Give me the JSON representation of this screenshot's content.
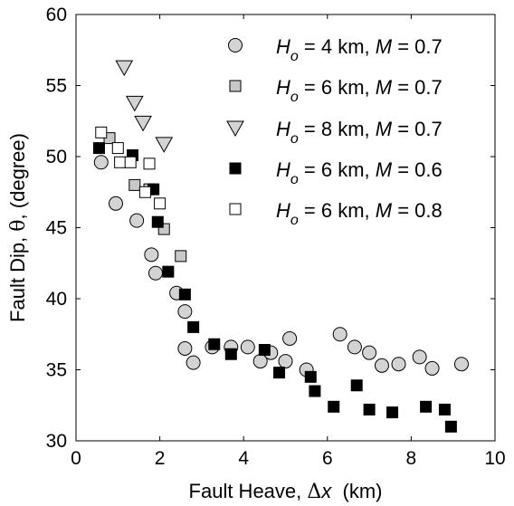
{
  "chart_data": {
    "type": "scatter",
    "xlabel": {
      "prefix": "Fault Heave, ",
      "symbol": "Δ",
      "var": "x",
      "unit": "  (km)"
    },
    "ylabel": {
      "prefix": "Fault Dip, ",
      "symbol": "θ",
      "suffix": ", (degree)"
    },
    "xlim": [
      0,
      10
    ],
    "ylim": [
      30,
      60
    ],
    "xticks": [
      0,
      2,
      4,
      6,
      8,
      10
    ],
    "yticks": [
      30,
      35,
      40,
      45,
      50,
      55,
      60
    ],
    "grid": false,
    "legend_position": "top-right",
    "series": [
      {
        "legend": {
          "h_label": "H",
          "h_sub": "o",
          "h_value": " = 4 km, ",
          "m_label": "M",
          "m_value": " = 0.7"
        },
        "marker": "circle",
        "fill": "#d3d3d3",
        "points": [
          [
            0.6,
            49.6
          ],
          [
            0.95,
            46.7
          ],
          [
            1.45,
            45.5
          ],
          [
            1.8,
            43.1
          ],
          [
            1.9,
            41.8
          ],
          [
            2.4,
            40.4
          ],
          [
            2.6,
            39.1
          ],
          [
            2.6,
            36.5
          ],
          [
            2.8,
            35.5
          ],
          [
            3.25,
            36.6
          ],
          [
            3.7,
            36.6
          ],
          [
            4.1,
            36.6
          ],
          [
            4.4,
            35.6
          ],
          [
            4.65,
            36.2
          ],
          [
            5,
            35.6
          ],
          [
            5.1,
            37.2
          ],
          [
            5.5,
            35.0
          ],
          [
            6.3,
            37.5
          ],
          [
            6.65,
            36.6
          ],
          [
            7,
            36.2
          ],
          [
            7.3,
            35.3
          ],
          [
            7.7,
            35.4
          ],
          [
            8.2,
            35.9
          ],
          [
            8.5,
            35.1
          ],
          [
            9.2,
            35.4
          ]
        ]
      },
      {
        "legend": {
          "h_label": "H",
          "h_sub": "o",
          "h_value": " = 6 km, ",
          "m_label": "M",
          "m_value": " = 0.7"
        },
        "marker": "square",
        "fill": "#c8c8c8",
        "points": [
          [
            0.8,
            51.3
          ],
          [
            1.4,
            48.0
          ],
          [
            1.75,
            47.7
          ],
          [
            2.1,
            44.9
          ],
          [
            2.5,
            43.0
          ]
        ]
      },
      {
        "legend": {
          "h_label": "H",
          "h_sub": "o",
          "h_value": " = 8 km, ",
          "m_label": "M",
          "m_value": " = 0.7"
        },
        "marker": "triangle-down",
        "fill": "#d3d3d3",
        "points": [
          [
            1.15,
            56.3
          ],
          [
            1.4,
            53.8
          ],
          [
            1.6,
            52.4
          ],
          [
            2.1,
            50.9
          ]
        ]
      },
      {
        "legend": {
          "h_label": "H",
          "h_sub": "o",
          "h_value": " = 6 km, ",
          "m_label": "M",
          "m_value": " = 0.6"
        },
        "marker": "square",
        "fill": "#000000",
        "points": [
          [
            0.55,
            50.6
          ],
          [
            1.35,
            50.1
          ],
          [
            1.85,
            47.7
          ],
          [
            1.95,
            45.4
          ],
          [
            2.2,
            41.9
          ],
          [
            2.6,
            40.3
          ],
          [
            2.8,
            38.0
          ],
          [
            3.3,
            36.8
          ],
          [
            3.7,
            36.1
          ],
          [
            4.5,
            36.4
          ],
          [
            4.85,
            34.8
          ],
          [
            5.6,
            34.5
          ],
          [
            5.7,
            33.5
          ],
          [
            6.15,
            32.4
          ],
          [
            6.7,
            33.9
          ],
          [
            7,
            32.2
          ],
          [
            7.55,
            32.0
          ],
          [
            8.35,
            32.4
          ],
          [
            8.8,
            32.2
          ],
          [
            8.95,
            31.0
          ]
        ]
      },
      {
        "legend": {
          "h_label": "H",
          "h_sub": "o",
          "h_value": " = 6 km, ",
          "m_label": "M",
          "m_value": " = 0.8"
        },
        "marker": "square",
        "fill": "#ffffff",
        "points": [
          [
            0.6,
            51.7
          ],
          [
            1,
            50.6
          ],
          [
            1.05,
            49.6
          ],
          [
            1.3,
            49.6
          ],
          [
            1.75,
            49.5
          ],
          [
            1.65,
            47.5
          ],
          [
            2,
            46.7
          ]
        ]
      }
    ]
  }
}
